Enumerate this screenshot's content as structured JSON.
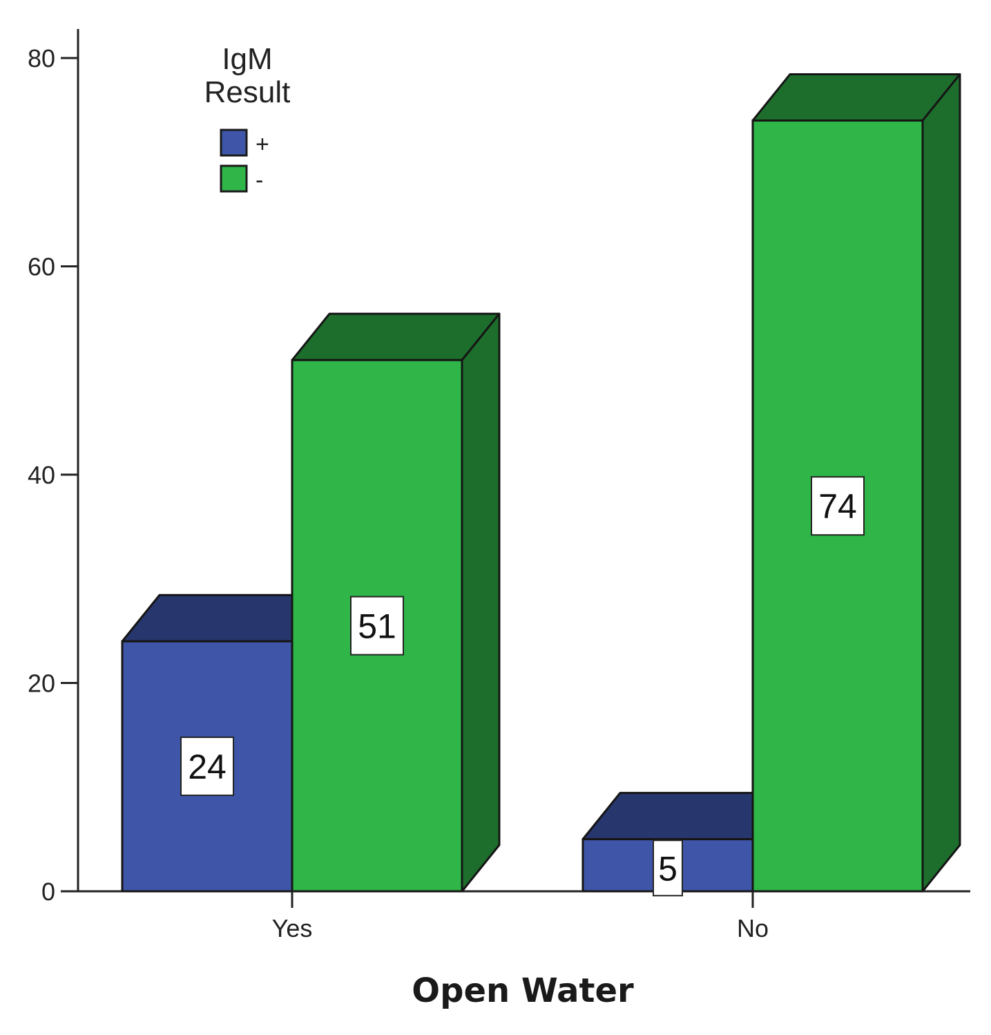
{
  "chart_data": {
    "type": "bar",
    "xlabel": "Open Water",
    "ylabel": "",
    "categories": [
      "Yes",
      "No"
    ],
    "ylim": [
      0,
      80
    ],
    "yticks": [
      0,
      20,
      40,
      60,
      80
    ],
    "legend": {
      "title_line1": "IgM",
      "title_line2": "Result",
      "position": "top-left"
    },
    "series": [
      {
        "name": "+",
        "values": [
          24,
          5
        ],
        "color": "#3f56a8",
        "top_color": "#27366d"
      },
      {
        "name": "-",
        "values": [
          51,
          74
        ],
        "color": "#2fb548",
        "top_color": "#1d6e2c",
        "side_color": "#1d6e2c"
      }
    ],
    "three_d": true,
    "grid": false
  }
}
